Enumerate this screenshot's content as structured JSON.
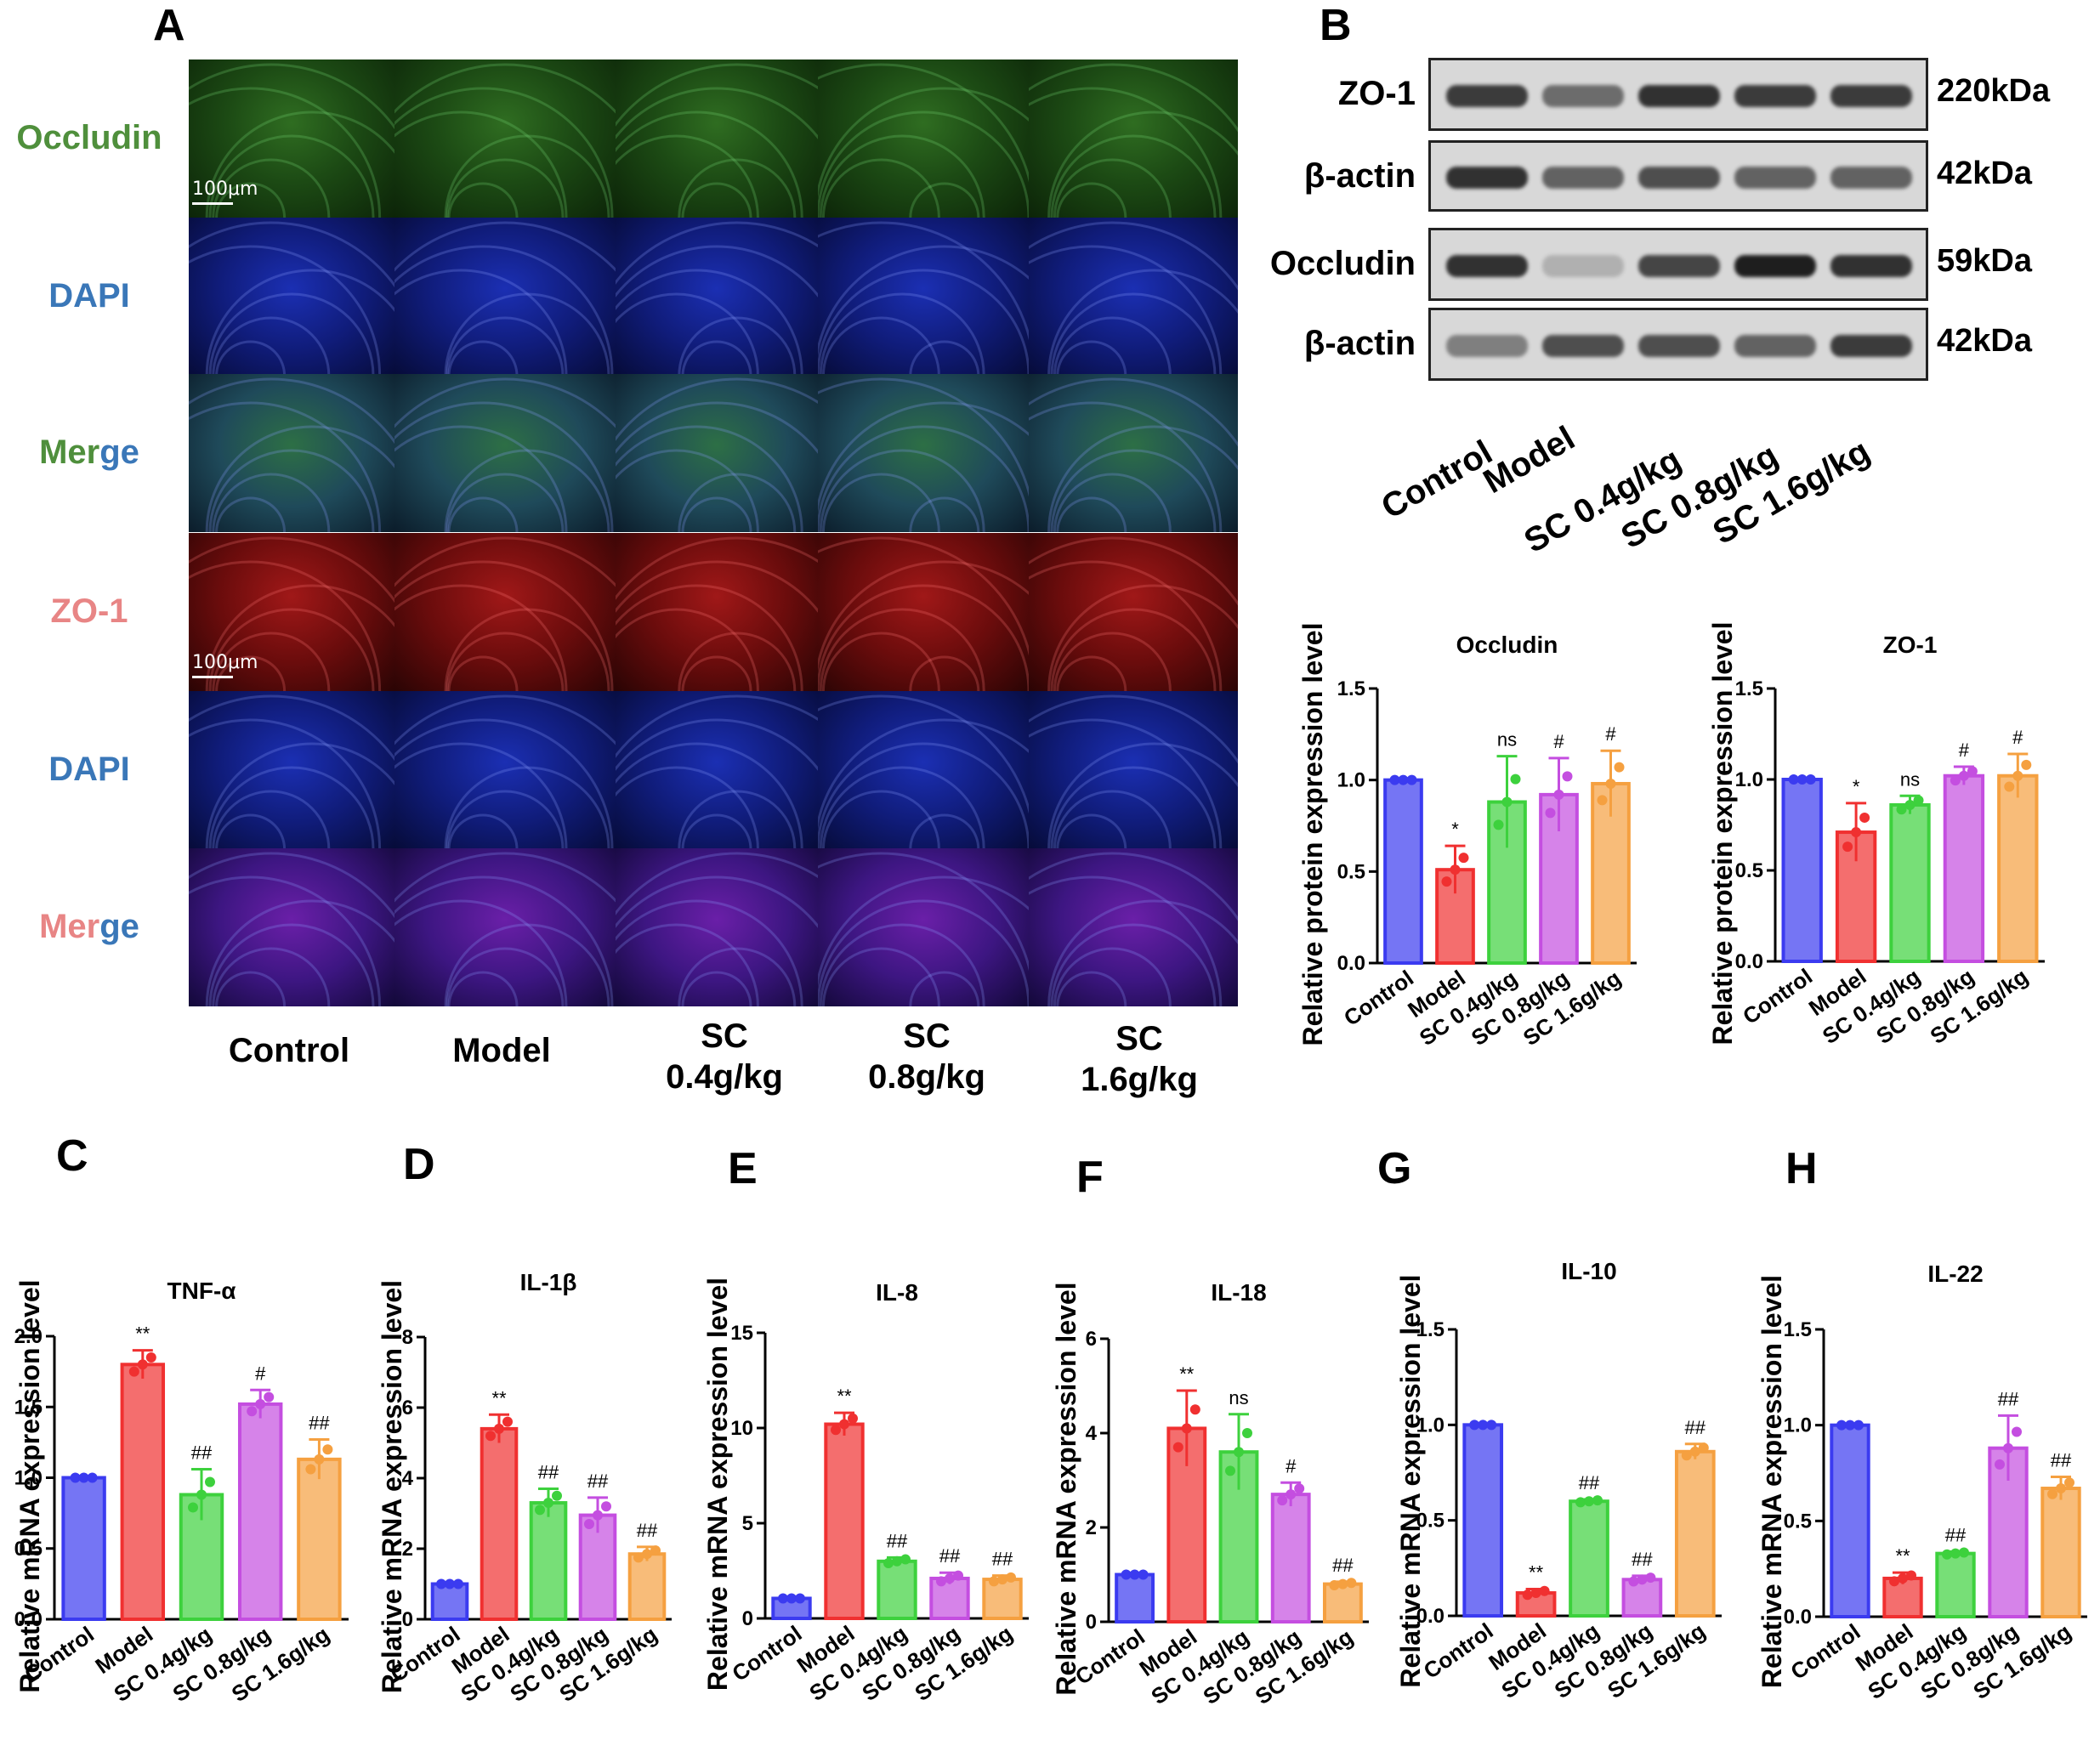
{
  "panels": {
    "A": "A",
    "B": "B",
    "C": "C",
    "D": "D",
    "E": "E",
    "F": "F",
    "G": "G",
    "H": "H"
  },
  "if_panel": {
    "rows": [
      {
        "label_parts": [
          {
            "text": "Occludin",
            "color": "#4f8f3c"
          }
        ],
        "stain": "green"
      },
      {
        "label_parts": [
          {
            "text": "DAPI",
            "color": "#3a77b8"
          }
        ],
        "stain": "blue"
      },
      {
        "label_parts": [
          {
            "text": "Mer",
            "color": "#4f8f3c"
          },
          {
            "text": "ge",
            "color": "#3a77b8"
          }
        ],
        "stain": "merge-green"
      },
      {
        "label_parts": [
          {
            "text": "ZO-1",
            "color": "#e88585"
          }
        ],
        "stain": "red"
      },
      {
        "label_parts": [
          {
            "text": "DAPI",
            "color": "#3a77b8"
          }
        ],
        "stain": "blue"
      },
      {
        "label_parts": [
          {
            "text": "Mer",
            "color": "#e88585"
          },
          {
            "text": "ge",
            "color": "#3a77b8"
          }
        ],
        "stain": "merge-red"
      }
    ],
    "scale_bar": "100μm",
    "groups": [
      "Control",
      "Model",
      "SC\n0.4g/kg",
      "SC\n0.8g/kg",
      "SC\n1.6g/kg"
    ]
  },
  "blot": {
    "rows": [
      {
        "protein": "ZO-1",
        "kda": "220kDa"
      },
      {
        "protein": "β-actin",
        "kda": "42kDa"
      },
      {
        "protein": "Occludin",
        "kda": "59kDa"
      },
      {
        "protein": "β-actin",
        "kda": "42kDa"
      }
    ],
    "lanes": [
      "Control",
      "Model",
      "SC 0.4g/kg",
      "SC 0.8g/kg",
      "SC 1.6g/kg"
    ]
  },
  "colors": {
    "Control": "#3b3bf0",
    "Model": "#f03030",
    "SC 0.4g/kg": "#3dd13d",
    "SC 0.8g/kg": "#c44ee0",
    "SC 1.6g/kg": "#f5a040"
  },
  "chart_data": [
    {
      "id": "occludin",
      "type": "bar",
      "title": "Occludin",
      "ylabel": "Relative protein expression level",
      "categories": [
        "Control",
        "Model",
        "SC 0.4g/kg",
        "SC 0.8g/kg",
        "SC 1.6g/kg"
      ],
      "values": [
        1.0,
        0.51,
        0.88,
        0.92,
        0.98
      ],
      "errors": [
        0.0,
        0.13,
        0.25,
        0.2,
        0.18
      ],
      "annotations": [
        "",
        "*",
        "ns",
        "#",
        "#"
      ],
      "ylim": [
        0,
        1.5
      ],
      "ticks": [
        "0.0",
        "0.5",
        "1.0",
        "1.5"
      ],
      "tick_values": [
        0,
        0.5,
        1.0,
        1.5
      ]
    },
    {
      "id": "zo1",
      "type": "bar",
      "title": "ZO-1",
      "ylabel": "Relative protein expression level",
      "categories": [
        "Control",
        "Model",
        "SC 0.4g/kg",
        "SC 0.8g/kg",
        "SC 1.6g/kg"
      ],
      "values": [
        1.0,
        0.71,
        0.86,
        1.02,
        1.02
      ],
      "errors": [
        0.0,
        0.16,
        0.05,
        0.05,
        0.12
      ],
      "annotations": [
        "",
        "*",
        "ns",
        "#",
        "#"
      ],
      "ylim": [
        0,
        1.5
      ],
      "ticks": [
        "0.0",
        "0.5",
        "1.0",
        "1.5"
      ],
      "tick_values": [
        0,
        0.5,
        1.0,
        1.5
      ]
    },
    {
      "id": "tnf",
      "type": "bar",
      "title": "TNF-α",
      "ylabel": "Relative mRNA expression level",
      "categories": [
        "Control",
        "Model",
        "SC 0.4g/kg",
        "SC 0.8g/kg",
        "SC 1.6g/kg"
      ],
      "values": [
        1.0,
        1.8,
        0.88,
        1.52,
        1.13
      ],
      "errors": [
        0.0,
        0.1,
        0.18,
        0.1,
        0.14
      ],
      "annotations": [
        "",
        "**",
        "##",
        "#",
        "##"
      ],
      "ylim": [
        0,
        2.0
      ],
      "ticks": [
        "0.0",
        "0.5",
        "1.0",
        "1.5",
        "2.0"
      ],
      "tick_values": [
        0,
        0.5,
        1.0,
        1.5,
        2.0
      ]
    },
    {
      "id": "il1b",
      "type": "bar",
      "title": "IL-1β",
      "ylabel": "Relative mRNA expression level",
      "categories": [
        "Control",
        "Model",
        "SC 0.4g/kg",
        "SC 0.8g/kg",
        "SC 1.6g/kg"
      ],
      "values": [
        1.0,
        5.4,
        3.3,
        2.95,
        1.85
      ],
      "errors": [
        0.0,
        0.4,
        0.4,
        0.5,
        0.2
      ],
      "annotations": [
        "",
        "**",
        "##",
        "##",
        "##"
      ],
      "ylim": [
        0,
        8
      ],
      "ticks": [
        "0",
        "2",
        "4",
        "6",
        "8"
      ],
      "tick_values": [
        0,
        2,
        4,
        6,
        8
      ]
    },
    {
      "id": "il8",
      "type": "bar",
      "title": "IL-8",
      "ylabel": "Relative mRNA expression level",
      "categories": [
        "Control",
        "Model",
        "SC 0.4g/kg",
        "SC 0.8g/kg",
        "SC 1.6g/kg"
      ],
      "values": [
        1.05,
        10.2,
        3.0,
        2.1,
        2.05
      ],
      "errors": [
        0.0,
        0.6,
        0.2,
        0.3,
        0.2
      ],
      "annotations": [
        "",
        "**",
        "##",
        "##",
        "##"
      ],
      "ylim": [
        0,
        15
      ],
      "ticks": [
        "0",
        "5",
        "10",
        "15"
      ],
      "tick_values": [
        0,
        5,
        10,
        15
      ]
    },
    {
      "id": "il18",
      "type": "bar",
      "title": "IL-18",
      "ylabel": "Relative mRNA expression level",
      "categories": [
        "Control",
        "Model",
        "SC 0.4g/kg",
        "SC 0.8g/kg",
        "SC 1.6g/kg"
      ],
      "values": [
        1.0,
        4.1,
        3.6,
        2.7,
        0.8
      ],
      "errors": [
        0.0,
        0.8,
        0.8,
        0.25,
        0.05
      ],
      "annotations": [
        "",
        "**",
        "ns",
        "#",
        "##"
      ],
      "ylim": [
        0,
        6
      ],
      "ticks": [
        "0",
        "2",
        "4",
        "6"
      ],
      "tick_values": [
        0,
        2,
        4,
        6
      ]
    },
    {
      "id": "il10",
      "type": "bar",
      "title": "IL-10",
      "ylabel": "Relative mRNA expression level",
      "categories": [
        "Control",
        "Model",
        "SC 0.4g/kg",
        "SC 0.8g/kg",
        "SC 1.6g/kg"
      ],
      "values": [
        1.0,
        0.12,
        0.6,
        0.19,
        0.86
      ],
      "errors": [
        0.0,
        0.02,
        0.01,
        0.02,
        0.04
      ],
      "annotations": [
        "",
        "**",
        "##",
        "##",
        "##"
      ],
      "ylim": [
        0,
        1.5
      ],
      "ticks": [
        "0.0",
        "0.5",
        "1.0",
        "1.5"
      ],
      "tick_values": [
        0,
        0.5,
        1.0,
        1.5
      ]
    },
    {
      "id": "il22",
      "type": "bar",
      "title": "IL-22",
      "ylabel": "Relative mRNA expression level",
      "categories": [
        "Control",
        "Model",
        "SC 0.4g/kg",
        "SC 0.8g/kg",
        "SC 1.6g/kg"
      ],
      "values": [
        1.0,
        0.2,
        0.33,
        0.88,
        0.67
      ],
      "errors": [
        0.0,
        0.03,
        0.01,
        0.17,
        0.06
      ],
      "annotations": [
        "",
        "**",
        "##",
        "##",
        "##"
      ],
      "ylim": [
        0,
        1.5
      ],
      "ticks": [
        "0.0",
        "0.5",
        "1.0",
        "1.5"
      ],
      "tick_values": [
        0,
        0.5,
        1.0,
        1.5
      ]
    }
  ]
}
